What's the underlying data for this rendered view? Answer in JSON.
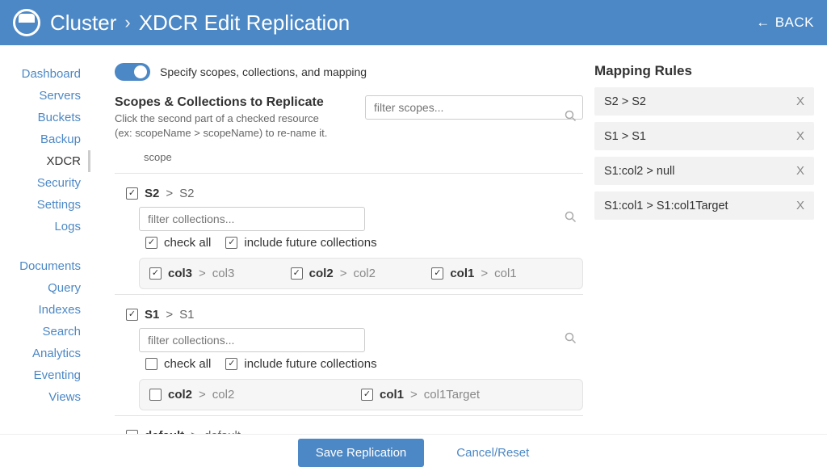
{
  "colors": {
    "brand": "#4c88c5",
    "text": "#333333",
    "muted": "#888888",
    "panel_bg": "#f6f6f6",
    "rule_bg": "#f2f2f2",
    "border": "#e3e3e3"
  },
  "header": {
    "breadcrumb_root": "Cluster",
    "breadcrumb_sep": "›",
    "breadcrumb_page": "XDCR Edit Replication",
    "back_label": "BACK"
  },
  "sidebar": {
    "group1": [
      "Dashboard",
      "Servers",
      "Buckets",
      "Backup",
      "XDCR",
      "Security",
      "Settings",
      "Logs"
    ],
    "group2": [
      "Documents",
      "Query",
      "Indexes",
      "Search",
      "Analytics",
      "Eventing",
      "Views"
    ],
    "active": "XDCR"
  },
  "toggle": {
    "on": true,
    "label": "Specify scopes, collections, and mapping"
  },
  "section": {
    "title": "Scopes & Collections to Replicate",
    "sub1": "Click the second part of a checked resource",
    "sub2": "(ex: scopeName > scopeName) to re-name it.",
    "filter_scopes_placeholder": "filter scopes...",
    "scope_column_label": "scope"
  },
  "common": {
    "gt": ">",
    "filter_collections_placeholder": "filter collections...",
    "check_all": "check all",
    "include_future": "include future collections"
  },
  "scopes": [
    {
      "checked": true,
      "name": "S2",
      "target": "S2",
      "check_all": true,
      "include_future": true,
      "collections": [
        {
          "checked": true,
          "name": "col3",
          "target": "col3"
        },
        {
          "checked": true,
          "name": "col2",
          "target": "col2"
        },
        {
          "checked": true,
          "name": "col1",
          "target": "col1"
        }
      ]
    },
    {
      "checked": true,
      "name": "S1",
      "target": "S1",
      "check_all": false,
      "include_future": true,
      "collections": [
        {
          "checked": false,
          "name": "col2",
          "target": "col2"
        },
        {
          "checked": true,
          "name": "col1",
          "target": "col1Target"
        }
      ]
    },
    {
      "checked": false,
      "name": "default",
      "target": "default",
      "check_all": false,
      "include_future": false,
      "collections": []
    }
  ],
  "rules": {
    "title": "Mapping Rules",
    "items": [
      "S2 > S2",
      "S1 > S1",
      "S1:col2 > null",
      "S1:col1 > S1:col1Target"
    ]
  },
  "footer": {
    "save": "Save Replication",
    "cancel": "Cancel/Reset"
  }
}
